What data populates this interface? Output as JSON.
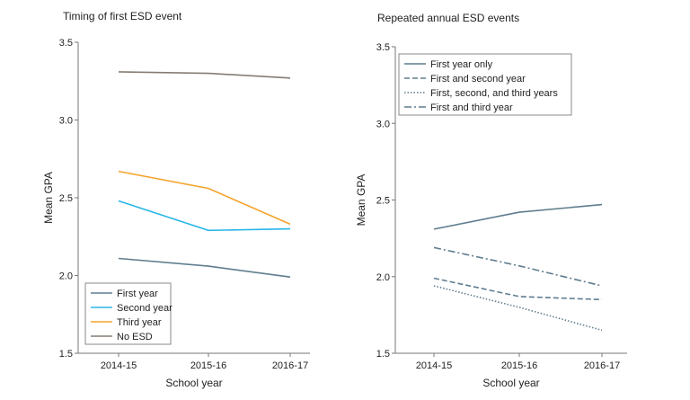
{
  "chart_data": [
    {
      "type": "line",
      "title": "Timing of first ESD event",
      "xlabel": "School year",
      "ylabel": "Mean GPA",
      "categories": [
        "2014-15",
        "2015-16",
        "2016-17"
      ],
      "ylim": [
        1.5,
        3.5
      ],
      "yticks": [
        "1.5",
        "2.0",
        "2.5",
        "3.0",
        "3.5"
      ],
      "legend_position": "bottom-left",
      "series": [
        {
          "name": "First year",
          "values": [
            2.11,
            2.06,
            1.99
          ],
          "color": "#5f7d8e",
          "dash": "solid"
        },
        {
          "name": "Second year",
          "values": [
            2.48,
            2.29,
            2.3
          ],
          "color": "#29b6e8",
          "dash": "solid"
        },
        {
          "name": "Third year",
          "values": [
            2.67,
            2.56,
            2.33
          ],
          "color": "#f5a32b",
          "dash": "solid"
        },
        {
          "name": "No ESD",
          "values": [
            3.31,
            3.3,
            3.27
          ],
          "color": "#857c74",
          "dash": "solid"
        }
      ]
    },
    {
      "type": "line",
      "title": "Repeated annual ESD events",
      "xlabel": "School year",
      "ylabel": "Mean GPA",
      "categories": [
        "2014-15",
        "2015-16",
        "2016-17"
      ],
      "ylim": [
        1.5,
        3.5
      ],
      "yticks": [
        "1.5",
        "2.0",
        "2.5",
        "3.0",
        "3.5"
      ],
      "legend_position": "top-left",
      "series": [
        {
          "name": "First year only",
          "values": [
            2.31,
            2.42,
            2.47
          ],
          "color": "#5f7d8e",
          "dash": "solid"
        },
        {
          "name": "First and second year",
          "values": [
            1.99,
            1.87,
            1.85
          ],
          "color": "#5f7d8e",
          "dash": "dashed"
        },
        {
          "name": "First, second, and third years",
          "values": [
            1.94,
            1.8,
            1.65
          ],
          "color": "#5f7d8e",
          "dash": "dotted"
        },
        {
          "name": "First and third year",
          "values": [
            2.19,
            2.07,
            1.94
          ],
          "color": "#5f7d8e",
          "dash": "dashdot"
        }
      ]
    }
  ]
}
